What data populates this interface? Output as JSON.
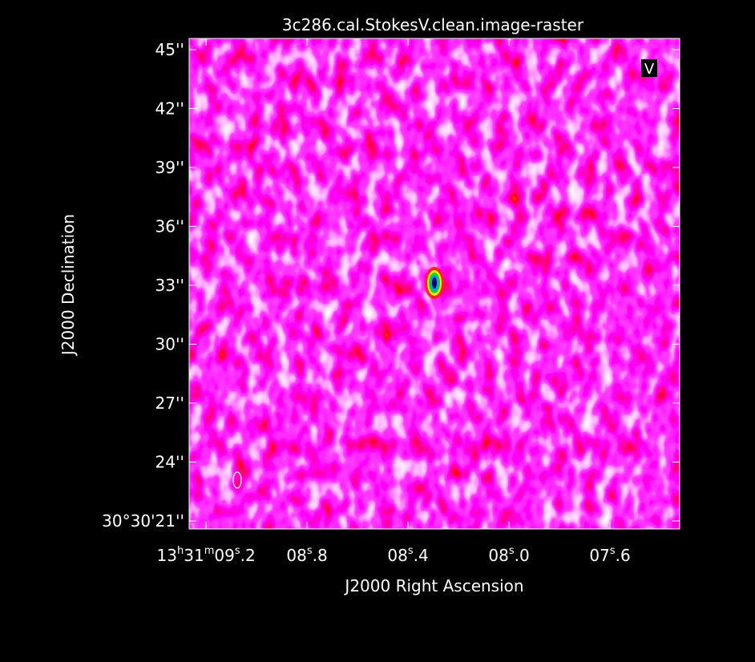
{
  "chart_data": {
    "type": "image",
    "title": "3c286.cal.StokesV.clean.image-raster",
    "xlabel": "J2000 Right Ascension",
    "ylabel": "J2000 Declination",
    "annotation": "V",
    "xlim": [
      9.267,
      7.324
    ],
    "xticks": [
      {
        "value": 9.2,
        "label": "13h31m09s.2"
      },
      {
        "value": 8.8,
        "label": "08s.8"
      },
      {
        "value": 8.4,
        "label": "08s.4"
      },
      {
        "value": 8.0,
        "label": "08s.0"
      },
      {
        "value": 7.6,
        "label": "07s.6"
      }
    ],
    "ylim": [
      20.59,
      45.57
    ],
    "yticks": [
      {
        "value": 45,
        "label": "45''"
      },
      {
        "value": 42,
        "label": "42''"
      },
      {
        "value": 39,
        "label": "39''"
      },
      {
        "value": 36,
        "label": "36''"
      },
      {
        "value": 33,
        "label": "33''"
      },
      {
        "value": 30,
        "label": "30''"
      },
      {
        "value": 27,
        "label": "27''"
      },
      {
        "value": 24,
        "label": "24''"
      },
      {
        "value": 21,
        "label": "30°30'21''"
      }
    ]
  }
}
